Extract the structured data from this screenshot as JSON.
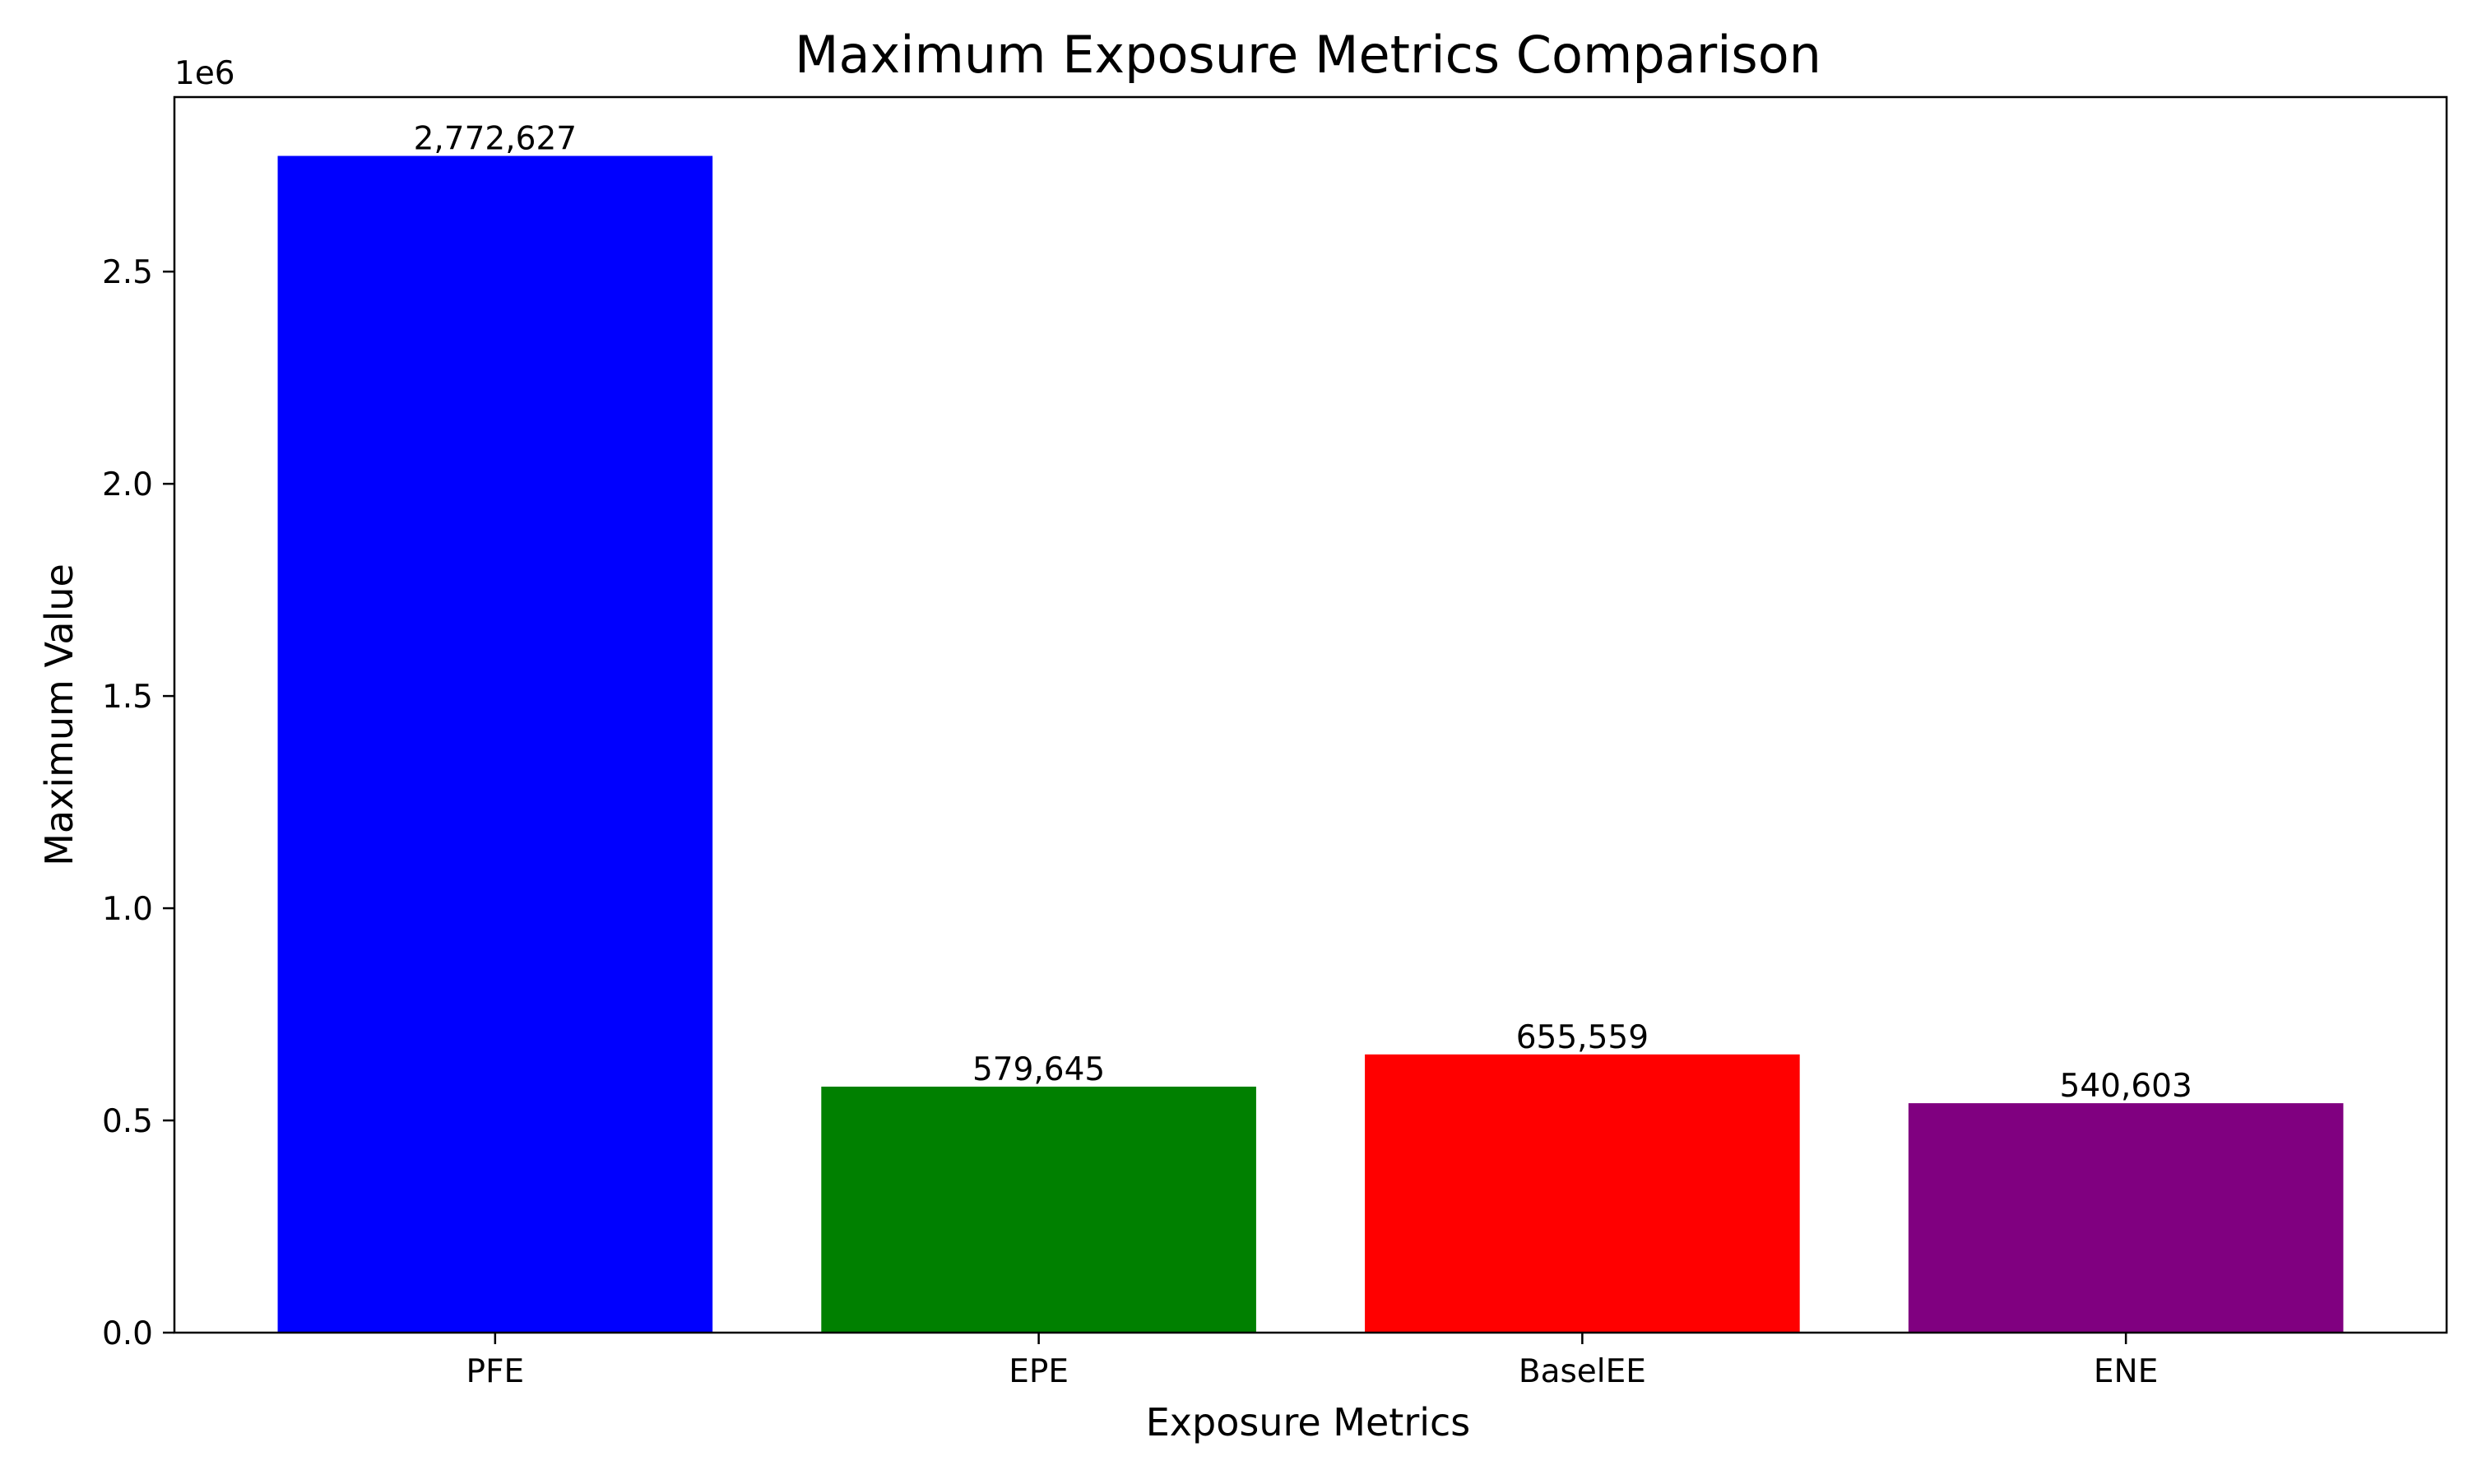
{
  "chart_data": {
    "type": "bar",
    "title": "Maximum Exposure Metrics Comparison",
    "xlabel": "Exposure Metrics",
    "ylabel": "Maximum Value",
    "categories": [
      "PFE",
      "EPE",
      "BaselEE",
      "ENE"
    ],
    "values": [
      2772627,
      579645,
      655559,
      540603
    ],
    "data_labels": [
      "2,772,627",
      "579,645",
      "655,559",
      "540,603"
    ],
    "colors": [
      "#0000ff",
      "#008000",
      "#ff0000",
      "#800080"
    ],
    "ylim": [
      0,
      2911258
    ],
    "yticks": [
      0,
      500000,
      1000000,
      1500000,
      2000000,
      2500000
    ],
    "ytick_labels": [
      "0.0",
      "0.5",
      "1.0",
      "1.5",
      "2.0",
      "2.5"
    ],
    "y_offset_label": "1e6",
    "grid": false,
    "legend": "none"
  }
}
